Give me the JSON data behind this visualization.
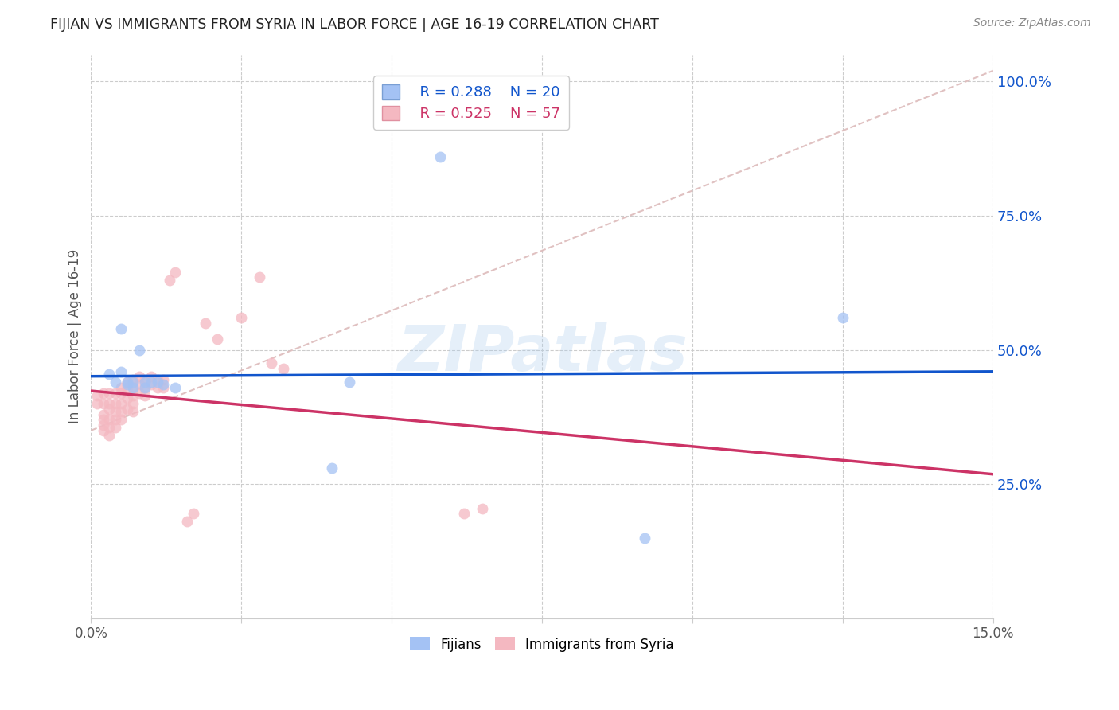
{
  "title": "FIJIAN VS IMMIGRANTS FROM SYRIA IN LABOR FORCE | AGE 16-19 CORRELATION CHART",
  "source": "Source: ZipAtlas.com",
  "ylabel": "In Labor Force | Age 16-19",
  "xlim": [
    0.0,
    0.15
  ],
  "ylim": [
    0.0,
    1.05
  ],
  "watermark": "ZIPatlas",
  "legend_r1": "R = 0.288",
  "legend_n1": "N = 20",
  "legend_r2": "R = 0.525",
  "legend_n2": "N = 57",
  "color_fijian": "#a4c2f4",
  "color_syria": "#f4b8c1",
  "color_fijian_line": "#1155cc",
  "color_syria_line": "#cc3366",
  "color_diagonal": "#ddbbbb",
  "yticks_right": [
    0.25,
    0.5,
    0.75,
    1.0
  ],
  "ytick_labels": [
    "25.0%",
    "50.0%",
    "75.0%",
    "100.0%"
  ],
  "fijian_x": [
    0.003,
    0.004,
    0.005,
    0.005,
    0.006,
    0.006,
    0.007,
    0.007,
    0.008,
    0.009,
    0.009,
    0.01,
    0.011,
    0.012,
    0.014,
    0.04,
    0.043,
    0.058,
    0.092,
    0.125
  ],
  "fijian_y": [
    0.455,
    0.44,
    0.46,
    0.54,
    0.435,
    0.44,
    0.44,
    0.43,
    0.5,
    0.44,
    0.43,
    0.44,
    0.44,
    0.435,
    0.43,
    0.28,
    0.44,
    0.86,
    0.15,
    0.56
  ],
  "syria_x": [
    0.001,
    0.001,
    0.002,
    0.002,
    0.002,
    0.002,
    0.002,
    0.002,
    0.003,
    0.003,
    0.003,
    0.003,
    0.003,
    0.003,
    0.004,
    0.004,
    0.004,
    0.004,
    0.004,
    0.005,
    0.005,
    0.005,
    0.005,
    0.005,
    0.006,
    0.006,
    0.006,
    0.006,
    0.007,
    0.007,
    0.007,
    0.007,
    0.007,
    0.008,
    0.008,
    0.008,
    0.009,
    0.009,
    0.009,
    0.01,
    0.01,
    0.011,
    0.011,
    0.012,
    0.012,
    0.013,
    0.014,
    0.016,
    0.017,
    0.019,
    0.021,
    0.025,
    0.028,
    0.03,
    0.032,
    0.062,
    0.065
  ],
  "syria_y": [
    0.415,
    0.4,
    0.42,
    0.4,
    0.38,
    0.37,
    0.36,
    0.35,
    0.42,
    0.4,
    0.39,
    0.37,
    0.355,
    0.34,
    0.42,
    0.4,
    0.385,
    0.37,
    0.355,
    0.43,
    0.42,
    0.4,
    0.385,
    0.37,
    0.44,
    0.43,
    0.41,
    0.39,
    0.445,
    0.43,
    0.415,
    0.4,
    0.385,
    0.45,
    0.435,
    0.42,
    0.445,
    0.43,
    0.415,
    0.45,
    0.435,
    0.445,
    0.43,
    0.445,
    0.43,
    0.63,
    0.645,
    0.18,
    0.195,
    0.55,
    0.52,
    0.56,
    0.635,
    0.475,
    0.465,
    0.195,
    0.205
  ]
}
